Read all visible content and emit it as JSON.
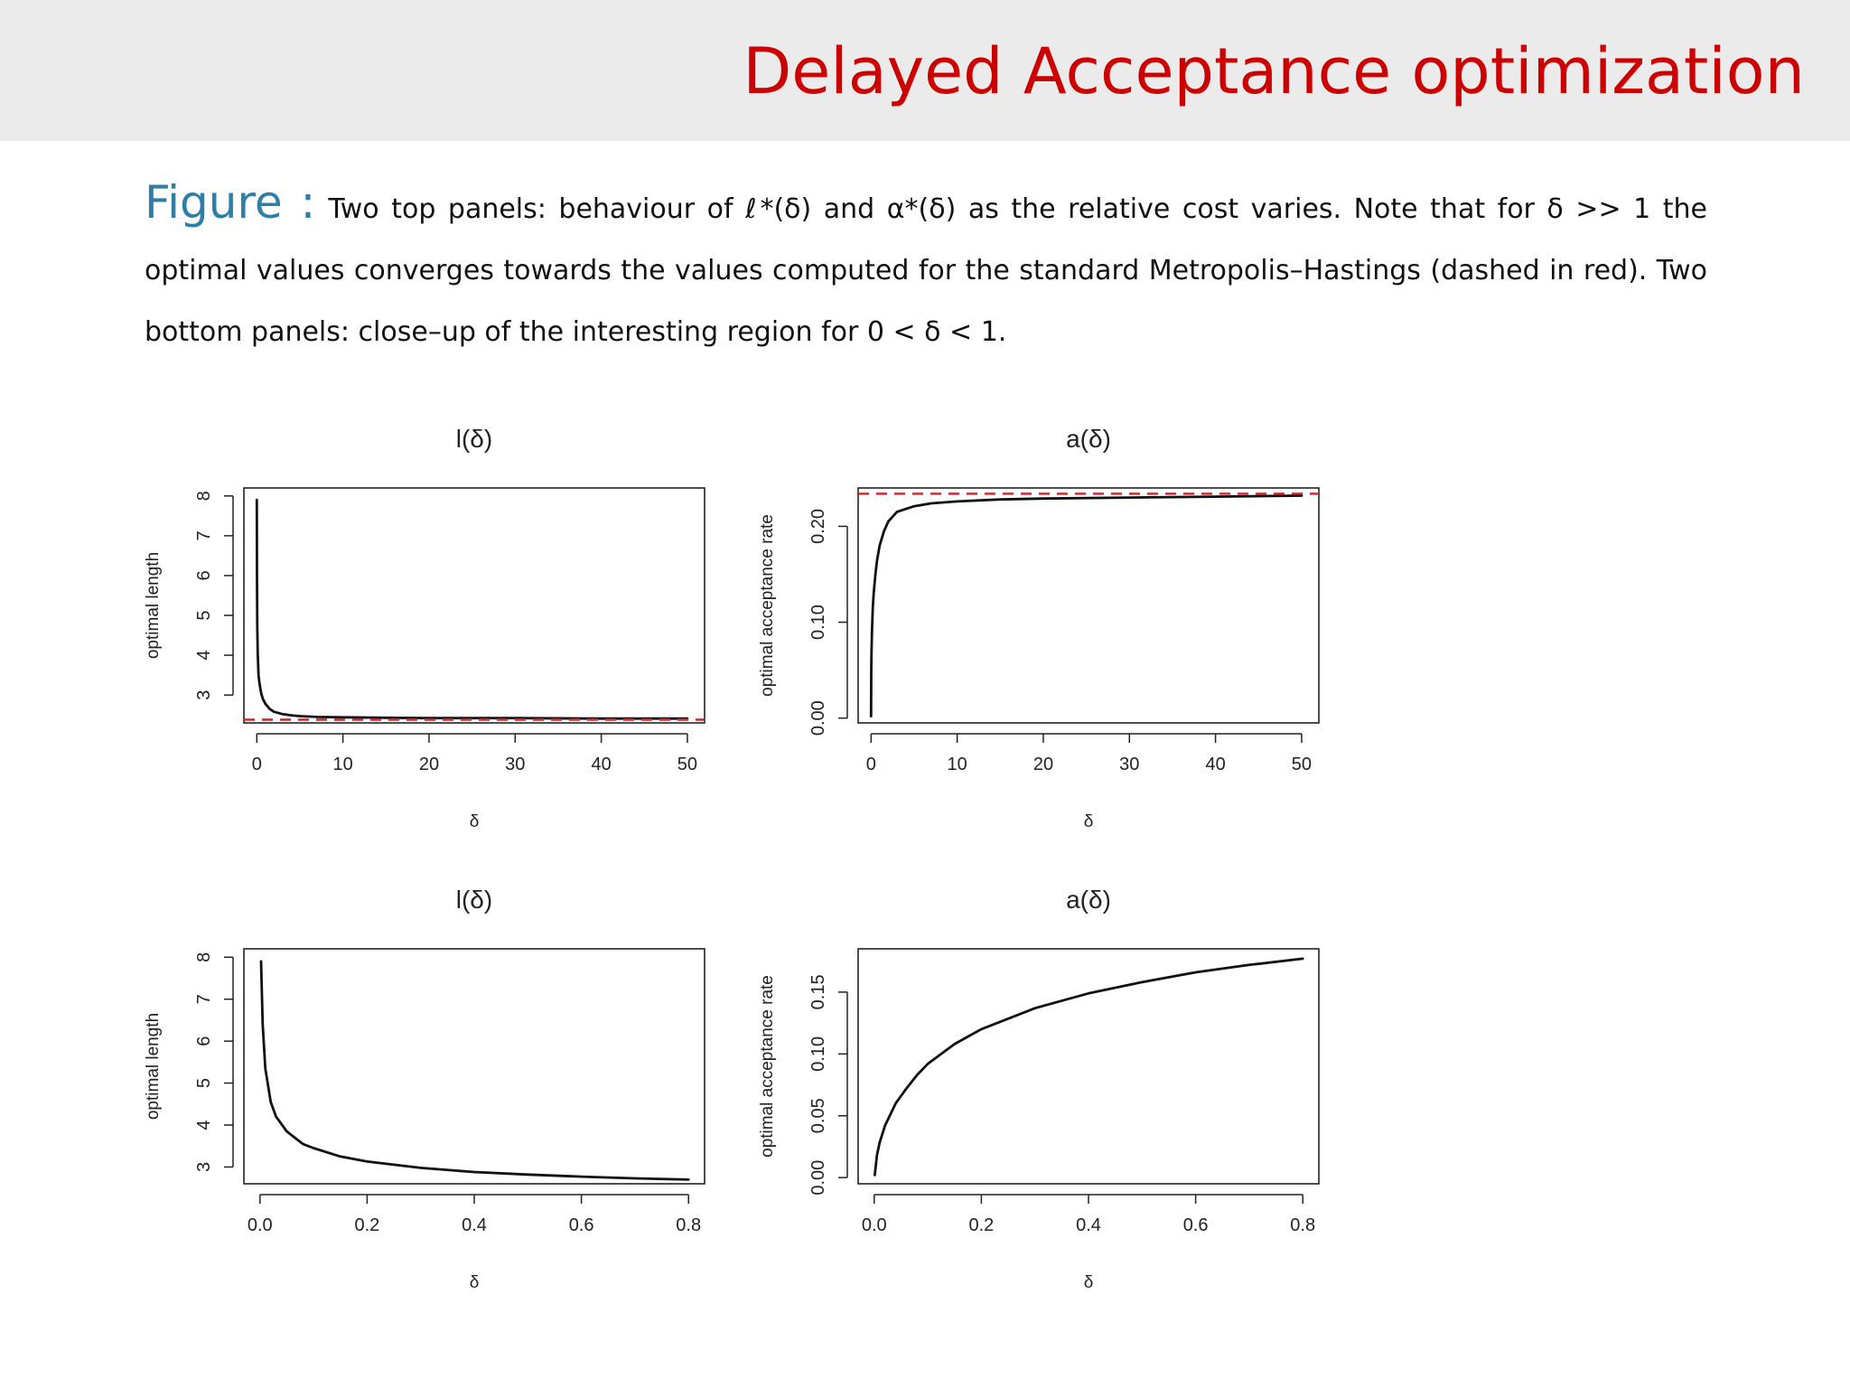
{
  "slide": {
    "title": "Delayed Acceptance optimization",
    "caption_label": "Figure :",
    "caption_text": "Two top panels: behaviour of ℓ*(δ) and α*(δ) as the relative cost varies. Note that for δ >> 1 the optimal values converges towards the values computed for the standard Metropolis–Hastings (dashed in red). Two bottom panels: close–up of the interesting region for 0 < δ < 1."
  },
  "colors": {
    "curve": "#111111",
    "reference": "#e8202a",
    "axis": "#222222",
    "title_red": "#cc0000",
    "caption_blue": "#2e7fa8"
  },
  "chart_data": [
    {
      "type": "line",
      "title": "l(δ)",
      "xlabel": "δ",
      "ylabel": "optimal length",
      "xlim": [
        -1.5,
        52
      ],
      "ylim": [
        2.3,
        8.2
      ],
      "xticks": [
        0,
        10,
        20,
        30,
        40,
        50
      ],
      "xtick_labels": [
        "0",
        "10",
        "20",
        "30",
        "40",
        "50"
      ],
      "yticks": [
        3,
        4,
        5,
        6,
        7,
        8
      ],
      "ytick_labels": [
        "3",
        "4",
        "5",
        "6",
        "7",
        "8"
      ],
      "series": [
        {
          "style": "solid",
          "x": [
            0.005,
            0.02,
            0.05,
            0.1,
            0.2,
            0.3,
            0.5,
            0.7,
            1,
            1.5,
            2,
            3,
            4,
            5,
            7,
            10,
            15,
            20,
            30,
            40,
            50
          ],
          "y": [
            7.9,
            5.9,
            4.75,
            4.05,
            3.5,
            3.3,
            3.05,
            2.9,
            2.78,
            2.65,
            2.58,
            2.52,
            2.49,
            2.47,
            2.45,
            2.44,
            2.43,
            2.42,
            2.42,
            2.41,
            2.41
          ]
        }
      ],
      "reference_lines": [
        {
          "y": 2.38,
          "style": "dashed"
        }
      ]
    },
    {
      "type": "line",
      "title": "a(δ)",
      "xlabel": "δ",
      "ylabel": "optimal acceptance rate",
      "xlim": [
        -1.5,
        52
      ],
      "ylim": [
        -0.005,
        0.24
      ],
      "xticks": [
        0,
        10,
        20,
        30,
        40,
        50
      ],
      "xtick_labels": [
        "0",
        "10",
        "20",
        "30",
        "40",
        "50"
      ],
      "yticks": [
        0,
        0.1,
        0.2
      ],
      "ytick_labels": [
        "0.00",
        "0.10",
        "0.20"
      ],
      "series": [
        {
          "style": "solid",
          "x": [
            0.001,
            0.02,
            0.05,
            0.1,
            0.2,
            0.3,
            0.5,
            0.7,
            1,
            1.5,
            2,
            3,
            4,
            5,
            7,
            10,
            15,
            20,
            30,
            40,
            50
          ],
          "y": [
            0.002,
            0.05,
            0.07,
            0.09,
            0.115,
            0.13,
            0.15,
            0.165,
            0.18,
            0.195,
            0.205,
            0.215,
            0.218,
            0.221,
            0.224,
            0.226,
            0.228,
            0.229,
            0.23,
            0.231,
            0.232
          ]
        }
      ],
      "reference_lines": [
        {
          "y": 0.234,
          "style": "dashed"
        }
      ]
    },
    {
      "type": "line",
      "title": "l(δ)",
      "xlabel": "δ",
      "ylabel": "optimal length",
      "xlim": [
        -0.03,
        0.83
      ],
      "ylim": [
        2.6,
        8.2
      ],
      "xticks": [
        0,
        0.2,
        0.4,
        0.6,
        0.8
      ],
      "xtick_labels": [
        "0.0",
        "0.2",
        "0.4",
        "0.6",
        "0.8"
      ],
      "yticks": [
        3,
        4,
        5,
        6,
        7,
        8
      ],
      "ytick_labels": [
        "3",
        "4",
        "5",
        "6",
        "7",
        "8"
      ],
      "series": [
        {
          "style": "solid",
          "x": [
            0.002,
            0.005,
            0.01,
            0.02,
            0.03,
            0.05,
            0.08,
            0.1,
            0.15,
            0.2,
            0.3,
            0.4,
            0.5,
            0.6,
            0.7,
            0.8
          ],
          "y": [
            7.9,
            6.4,
            5.35,
            4.55,
            4.2,
            3.85,
            3.55,
            3.45,
            3.25,
            3.13,
            2.98,
            2.88,
            2.82,
            2.77,
            2.73,
            2.7
          ]
        }
      ],
      "reference_lines": []
    },
    {
      "type": "line",
      "title": "a(δ)",
      "xlabel": "δ",
      "ylabel": "optimal acceptance rate",
      "xlim": [
        -0.03,
        0.83
      ],
      "ylim": [
        -0.005,
        0.185
      ],
      "xticks": [
        0,
        0.2,
        0.4,
        0.6,
        0.8
      ],
      "xtick_labels": [
        "0.0",
        "0.2",
        "0.4",
        "0.6",
        "0.8"
      ],
      "yticks": [
        0,
        0.05,
        0.1,
        0.15
      ],
      "ytick_labels": [
        "0.00",
        "0.05",
        "0.10",
        "0.15"
      ],
      "series": [
        {
          "style": "solid",
          "x": [
            0.001,
            0.005,
            0.01,
            0.02,
            0.04,
            0.06,
            0.08,
            0.1,
            0.15,
            0.2,
            0.3,
            0.4,
            0.5,
            0.6,
            0.7,
            0.8
          ],
          "y": [
            0.002,
            0.018,
            0.028,
            0.042,
            0.06,
            0.072,
            0.083,
            0.092,
            0.108,
            0.12,
            0.137,
            0.149,
            0.158,
            0.166,
            0.172,
            0.177
          ]
        }
      ],
      "reference_lines": []
    }
  ]
}
